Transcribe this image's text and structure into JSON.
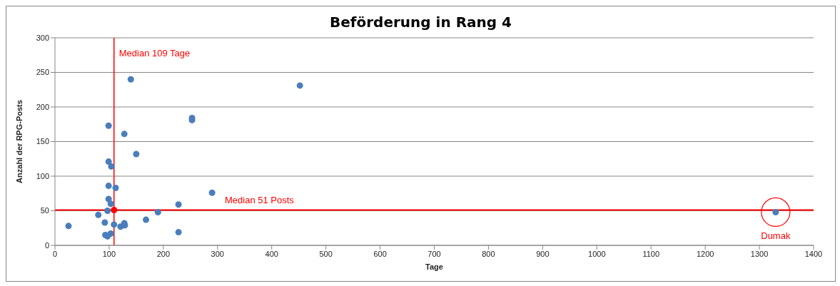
{
  "chart_data": {
    "type": "scatter",
    "title": "Beförderung in Rang 4",
    "xlabel": "Tage",
    "ylabel": "Anzahl der RPG-Posts",
    "series": [
      {
        "color": "#4a7ebb",
        "x": [
          25,
          80,
          92,
          93,
          97,
          103,
          97,
          99,
          103,
          112,
          99,
          99,
          104,
          99,
          128,
          150,
          253,
          253,
          109,
          121,
          128,
          129,
          168,
          190,
          228,
          228,
          290,
          140,
          452,
          1330
        ],
        "values": [
          28,
          44,
          33,
          15,
          13,
          17,
          50,
          67,
          60,
          83,
          86,
          121,
          114,
          173,
          161,
          132,
          184,
          181,
          30,
          27,
          32,
          29,
          37,
          48,
          59,
          19,
          76,
          240,
          231,
          48
        ]
      },
      {
        "color": "#ff0000",
        "x": [
          109
        ],
        "values": [
          51
        ]
      }
    ],
    "xlim": [
      0,
      1400
    ],
    "xticks": [
      0,
      100,
      200,
      300,
      400,
      500,
      600,
      700,
      800,
      900,
      1000,
      1100,
      1200,
      1300,
      1400
    ],
    "ylim": [
      0,
      300
    ],
    "yticks": [
      0,
      50,
      100,
      150,
      200,
      250,
      300
    ],
    "grid": "y",
    "marker": "circle",
    "ref_lines": [
      {
        "axis": "x",
        "value": 109,
        "label": "Median 109 Tage",
        "color": "#ff0000"
      },
      {
        "axis": "y",
        "value": 51,
        "label": "Median 51 Posts",
        "color": "#ff0000"
      }
    ],
    "annotations": [
      {
        "text": "Dumak",
        "x": 1330,
        "y": 48
      }
    ]
  }
}
